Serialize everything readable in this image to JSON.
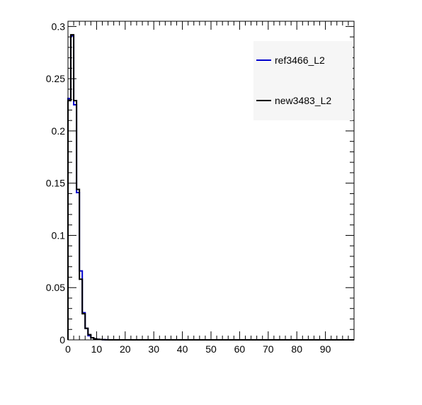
{
  "chart_data": {
    "type": "line",
    "title": "",
    "xlabel": "",
    "ylabel": "",
    "xlim": [
      0,
      100
    ],
    "ylim": [
      0,
      0.305
    ],
    "x_ticks": [
      0,
      10,
      20,
      30,
      40,
      50,
      60,
      70,
      80,
      90
    ],
    "x_tick_labels": [
      "0",
      "10",
      "20",
      "30",
      "40",
      "50",
      "60",
      "70",
      "80",
      "90"
    ],
    "y_ticks": [
      0,
      0.05,
      0.1,
      0.15,
      0.2,
      0.25,
      0.3
    ],
    "y_tick_labels": [
      "0",
      "0.05",
      "0.1",
      "0.15",
      "0.2",
      "0.25",
      "0.3"
    ],
    "bin_width": 1,
    "bin_edges_start": 0,
    "legend_position": "top-right",
    "series": [
      {
        "name": "ref3466_L2",
        "color": "#0000cc",
        "values": [
          0.231,
          0.291,
          0.225,
          0.141,
          0.066,
          0.026,
          0.011,
          0.004,
          0.002,
          0.001,
          0.0005,
          0.0003,
          0.0002,
          0.0001
        ]
      },
      {
        "name": "new3483_L2",
        "color": "#000000",
        "values": [
          0.229,
          0.292,
          0.229,
          0.144,
          0.058,
          0.025,
          0.011,
          0.005,
          0.002,
          0.001,
          0.0005,
          0.0003,
          0.0002,
          0.0001
        ]
      }
    ]
  }
}
